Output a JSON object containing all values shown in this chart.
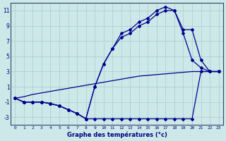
{
  "xlabel": "Graphe des températures (°c)",
  "bg_color": "#cce8e8",
  "grid_color": "#aacccc",
  "line_color": "#00008b",
  "hours": [
    0,
    1,
    2,
    3,
    4,
    5,
    6,
    7,
    8,
    9,
    10,
    11,
    12,
    13,
    14,
    15,
    16,
    17,
    18,
    19,
    20,
    21,
    22,
    23
  ],
  "line_straight": [
    -0.5,
    -0.3,
    0.0,
    0.2,
    0.4,
    0.6,
    0.8,
    1.0,
    1.2,
    1.4,
    1.6,
    1.8,
    2.0,
    2.2,
    2.4,
    2.5,
    2.6,
    2.7,
    2.8,
    2.9,
    3.0,
    3.0,
    3.0,
    3.0
  ],
  "line_main": [
    -0.5,
    -1.0,
    -1.0,
    -1.0,
    -1.2,
    -1.5,
    -2.0,
    -2.5,
    -3.2,
    -3.2,
    -3.2,
    -3.2,
    -3.2,
    -3.2,
    -3.2,
    -3.2,
    -3.2,
    -3.2,
    -3.2,
    -3.2,
    -3.2,
    3.0,
    3.0,
    3.0
  ],
  "line_max": [
    -0.5,
    -1.0,
    -1.0,
    -1.0,
    -1.2,
    -1.5,
    -2.0,
    -2.5,
    -3.2,
    1.0,
    4.0,
    6.0,
    8.0,
    8.5,
    9.5,
    10.0,
    11.0,
    11.5,
    11.0,
    8.0,
    4.5,
    3.5,
    3.0,
    3.0
  ],
  "line_mid": [
    -0.5,
    -1.0,
    -1.0,
    -1.0,
    -1.2,
    -1.5,
    -2.0,
    -2.5,
    -3.2,
    1.0,
    4.0,
    6.0,
    7.5,
    8.0,
    9.0,
    9.5,
    10.5,
    11.0,
    11.0,
    8.5,
    8.5,
    4.5,
    3.0,
    3.0
  ],
  "ylim": [
    -4,
    12
  ],
  "yticks": [
    -3,
    -1,
    1,
    3,
    5,
    7,
    9,
    11
  ],
  "xlim": [
    -0.5,
    23.5
  ]
}
